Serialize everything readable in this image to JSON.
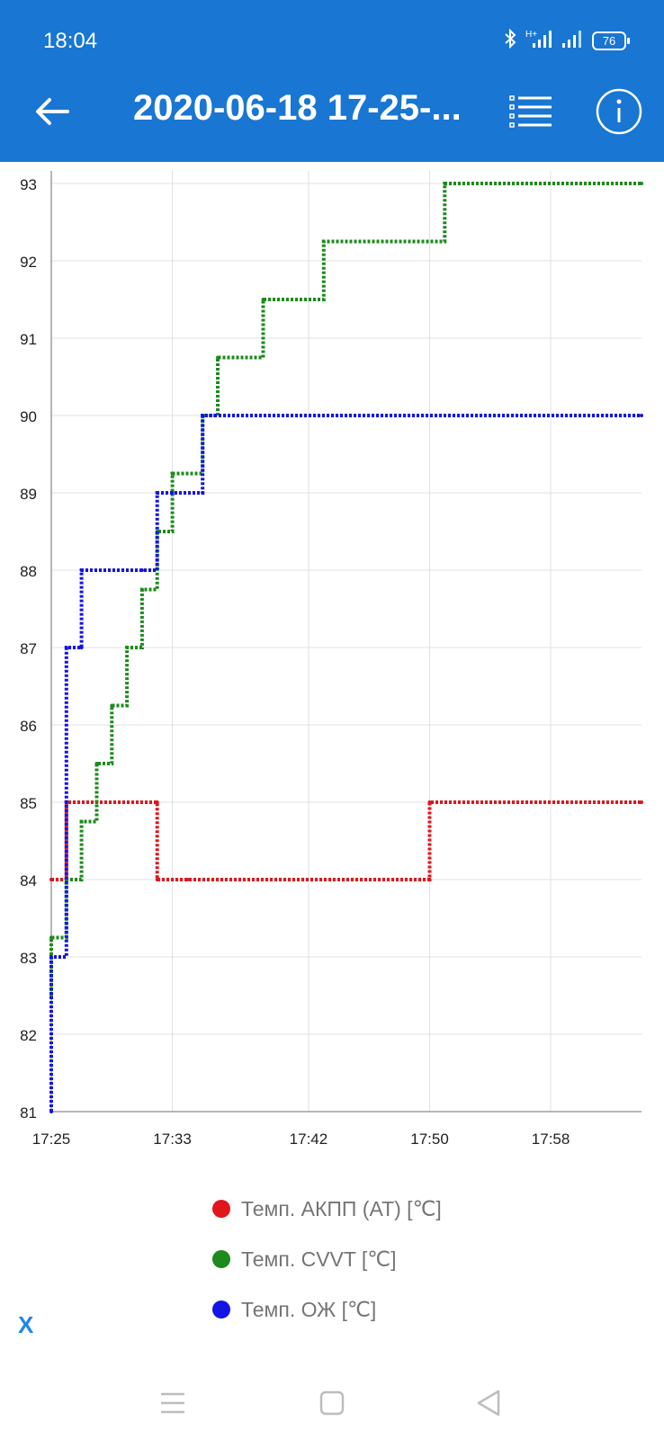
{
  "status_bar": {
    "time": "18:04",
    "battery": "76"
  },
  "app_bar": {
    "title": "2020-06-18 17-25-..."
  },
  "colors": {
    "appbar": "#1976d2",
    "grid": "#e0e0e0",
    "series": [
      "#e0161b",
      "#1e8a1e",
      "#1414e6"
    ]
  },
  "icons": [
    "back-arrow-icon",
    "list-icon",
    "info-icon",
    "bluetooth-icon",
    "signal-icon",
    "battery-icon",
    "menu-icon",
    "home-icon",
    "back-triangle-icon"
  ],
  "chart_data": {
    "type": "line",
    "title": "",
    "xlabel": "",
    "ylabel": "",
    "grid": true,
    "legend_position": "bottom",
    "xlim": [
      "17:25",
      "18:04"
    ],
    "ylim": [
      81,
      93
    ],
    "x_ticks": [
      "17:25",
      "17:33",
      "17:42",
      "17:50",
      "17:58"
    ],
    "y_ticks": [
      "81",
      "82",
      "83",
      "84",
      "85",
      "86",
      "87",
      "88",
      "89",
      "90",
      "91",
      "92",
      "93"
    ],
    "series": [
      {
        "name": "Темп. АКПП (AT) [℃]",
        "color": "#e0161b",
        "points": [
          [
            "17:25",
            84
          ],
          [
            "17:26",
            84
          ],
          [
            "17:26",
            85
          ],
          [
            "17:32",
            85
          ],
          [
            "17:32",
            84
          ],
          [
            "17:34",
            84
          ],
          [
            "17:50",
            84
          ],
          [
            "17:50",
            85
          ],
          [
            "18:04",
            85
          ]
        ]
      },
      {
        "name": "Темп. CVVT [℃]",
        "color": "#1e8a1e",
        "points": [
          [
            "17:25",
            82.5
          ],
          [
            "17:25",
            83.25
          ],
          [
            "17:26",
            84
          ],
          [
            "17:27",
            84.75
          ],
          [
            "17:28",
            85.5
          ],
          [
            "17:29",
            86.25
          ],
          [
            "17:30",
            87
          ],
          [
            "17:31",
            87.75
          ],
          [
            "17:32",
            88.5
          ],
          [
            "17:33",
            89.25
          ],
          [
            "17:35",
            90
          ],
          [
            "17:36",
            90.75
          ],
          [
            "17:39",
            91.5
          ],
          [
            "17:43",
            92.25
          ],
          [
            "17:51",
            93
          ],
          [
            "18:04",
            93
          ]
        ]
      },
      {
        "name": "Темп. ОЖ [℃]",
        "color": "#1414e6",
        "points": [
          [
            "17:25",
            81
          ],
          [
            "17:25",
            83
          ],
          [
            "17:26",
            85
          ],
          [
            "17:26",
            87
          ],
          [
            "17:27",
            87
          ],
          [
            "17:27",
            88
          ],
          [
            "17:31",
            88
          ],
          [
            "17:32",
            89
          ],
          [
            "17:33",
            89
          ],
          [
            "17:35",
            89
          ],
          [
            "17:35",
            90
          ],
          [
            "18:04",
            90
          ]
        ]
      }
    ]
  },
  "footer": {
    "clear_label": "X"
  }
}
